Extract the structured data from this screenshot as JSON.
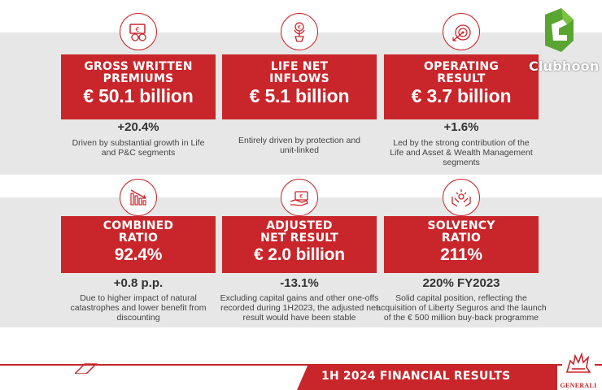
{
  "brand": {
    "red": "#c8262b",
    "band_gray": "#e7e7e7",
    "watermark_text": "Clubhoon",
    "watermark_color": "#5aa532",
    "logo_name": "GENERALI"
  },
  "kpis": [
    {
      "id": "gross-written-premiums",
      "icon": "euro-coins-icon",
      "title_line1": "GROSS WRITTEN",
      "title_line2": "PREMIUMS",
      "value": "€ 50.1 billion",
      "delta": "+20.4%",
      "desc_line1": "Driven by substantial growth in Life",
      "desc_line2": "and P&C segments",
      "desc_line3": ""
    },
    {
      "id": "life-net-inflows",
      "icon": "euro-plant-icon",
      "title_line1": "LIFE NET",
      "title_line2": "INFLOWS",
      "value": "€ 5.1 billion",
      "delta": "",
      "desc_line1": "Entirely driven by protection and",
      "desc_line2": "unit-linked",
      "desc_line3": ""
    },
    {
      "id": "operating-result",
      "icon": "target-arrow-icon",
      "title_line1": "OPERATING",
      "title_line2": "RESULT",
      "value": "€ 3.7 billion",
      "delta": "+1.6%",
      "desc_line1": "Led by the strong contribution of the",
      "desc_line2": "Life and Asset & Wealth Management",
      "desc_line3": "segments"
    },
    {
      "id": "combined-ratio",
      "icon": "declining-bars-icon",
      "title_line1": "COMBINED",
      "title_line2": "RATIO",
      "value": "92.4%",
      "delta": "+0.8 p.p.",
      "desc_line1": "Due to higher impact of natural",
      "desc_line2": "catastrophes and lower benefit from",
      "desc_line3": "discounting"
    },
    {
      "id": "adjusted-net-result",
      "icon": "hand-banknote-icon",
      "title_line1": "ADJUSTED",
      "title_line2": "NET RESULT",
      "value": "€ 2.0 billion",
      "delta": "-13.1%",
      "desc_line1": "Excluding capital gains and other one-offs",
      "desc_line2": "recorded during 1H2023, the adjusted net",
      "desc_line3": "result would have been stable"
    },
    {
      "id": "solvency-ratio",
      "icon": "hands-protecting-icon",
      "title_line1": "SOLVENCY",
      "title_line2": "RATIO",
      "value": "211%",
      "delta": "220% FY2023",
      "desc_line1": "Solid capital position, reflecting the",
      "desc_line2": "acquisition of Liberty Seguros and the launch",
      "desc_line3": "of the € 500 million buy-back programme"
    }
  ],
  "footer": {
    "title": "1H 2024 FINANCIAL RESULTS"
  }
}
